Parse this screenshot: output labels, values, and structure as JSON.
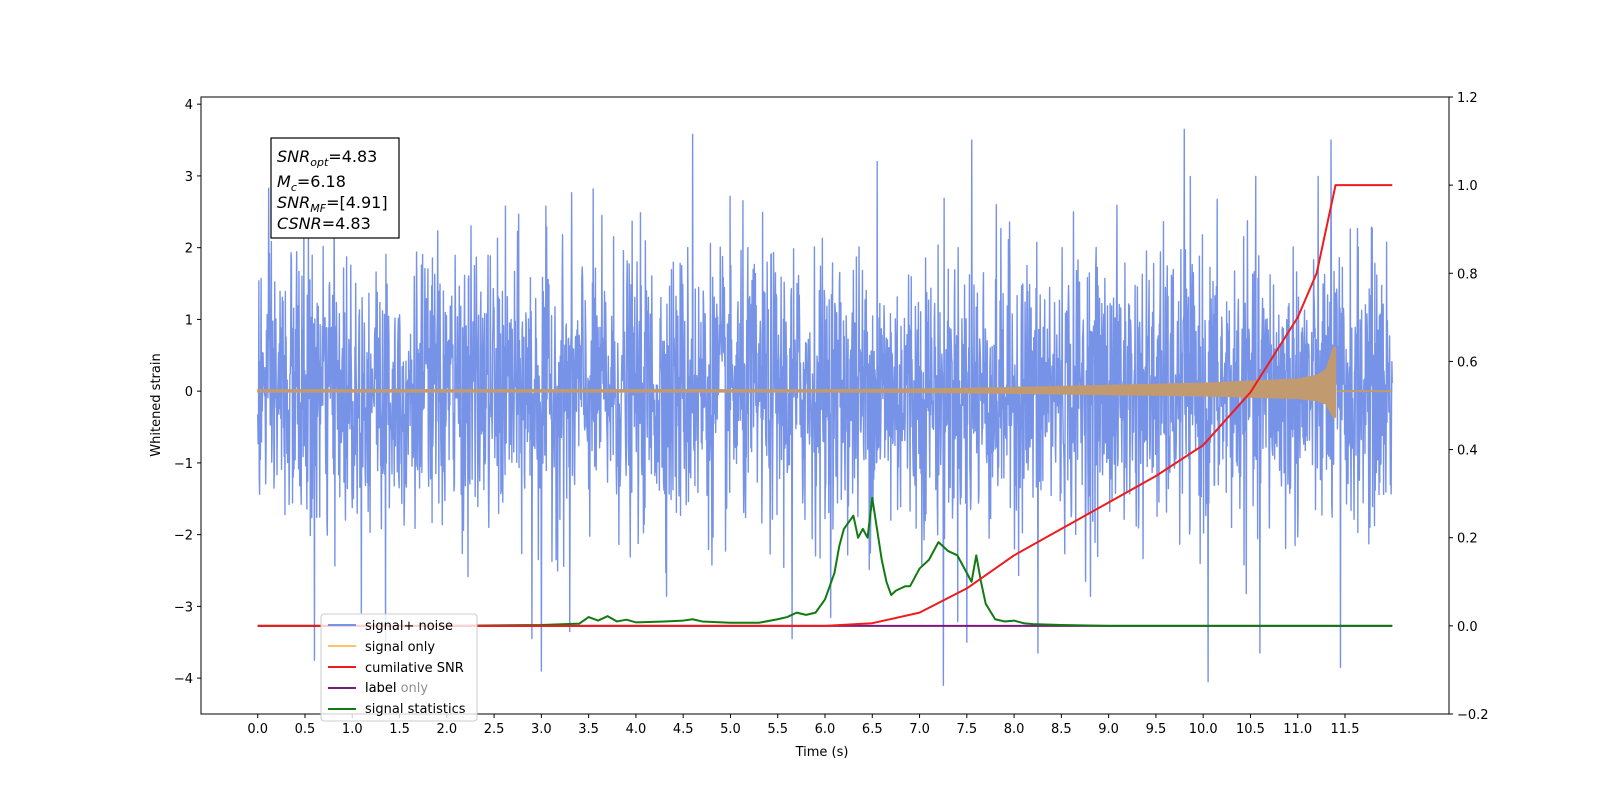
{
  "chart_data": {
    "type": "line",
    "title": "",
    "xlabel": "Time (s)",
    "ylabel": "Whitened strain",
    "x_ticks": [
      0.0,
      0.5,
      1.0,
      1.5,
      2.0,
      2.5,
      3.0,
      3.5,
      4.0,
      4.5,
      5.0,
      5.5,
      6.0,
      6.5,
      7.0,
      7.5,
      8.0,
      8.5,
      9.0,
      9.5,
      10.0,
      10.5,
      11.0,
      11.5
    ],
    "x_tick_labels": [
      "0.0",
      "0.5",
      "1.0",
      "1.5",
      "2.0",
      "2.5",
      "3.0",
      "3.5",
      "4.0",
      "4.5",
      "5.0",
      "5.5",
      "6.0",
      "6.5",
      "7.0",
      "7.5",
      "8.0",
      "8.5",
      "9.0",
      "9.5",
      "10.0",
      "10.5",
      "11.0",
      "11.5"
    ],
    "xlim": [
      -0.6,
      12.6
    ],
    "ylim_left": [
      -4.5,
      4.1
    ],
    "y_left_ticks": [
      -4,
      -3,
      -2,
      -1,
      0,
      1,
      2,
      3,
      4
    ],
    "y_left_tick_labels": [
      "−4",
      "−3",
      "−2",
      "−1",
      "0",
      "1",
      "2",
      "3",
      "4"
    ],
    "ylim_right": [
      -0.2,
      1.2
    ],
    "y_right_ticks": [
      -0.2,
      0.0,
      0.2,
      0.4,
      0.6,
      0.8,
      1.0,
      1.2
    ],
    "y_right_tick_labels": [
      "−0.2",
      "0.0",
      "0.2",
      "0.4",
      "0.6",
      "0.8",
      "1.0",
      "1.2"
    ],
    "legend_placement": "lower-left",
    "colors": {
      "signal_noise": "#7793e8",
      "signal_only": "#c29a6f",
      "signal_only_legend": "#ffc36b",
      "cumulative_snr": "#ee1c1c",
      "label": "#7a1a7a",
      "signal_statistics": "#127a12"
    },
    "series": [
      {
        "name": "signal+ noise",
        "axis": "left",
        "description_stats": {
          "x_start": 0.0,
          "x_end": 12.0,
          "std": 0.95,
          "peak_max": 3.65,
          "peak_min": -4.1
        },
        "notable_peaks": [
          [
            4.6,
            3.58
          ],
          [
            9.8,
            3.65
          ],
          [
            6.55,
            3.2
          ],
          [
            7.55,
            3.5
          ],
          [
            11.35,
            3.5
          ],
          [
            7.25,
            -4.1
          ],
          [
            10.05,
            -4.05
          ],
          [
            3.0,
            -3.9
          ],
          [
            0.6,
            -3.75
          ],
          [
            11.45,
            -3.85
          ],
          [
            10.6,
            -3.65
          ],
          [
            8.25,
            -3.65
          ],
          [
            7.5,
            -3.5
          ],
          [
            5.65,
            -3.45
          ],
          [
            2.9,
            -3.45
          ],
          [
            3.3,
            -3.35
          ],
          [
            1.35,
            -3.5
          ]
        ]
      },
      {
        "name": "signal only",
        "axis": "left",
        "envelope": [
          [
            0.0,
            0.02
          ],
          [
            4.0,
            0.02
          ],
          [
            6.0,
            0.02
          ],
          [
            7.0,
            0.03
          ],
          [
            8.0,
            0.05
          ],
          [
            9.0,
            0.08
          ],
          [
            10.0,
            0.11
          ],
          [
            10.5,
            0.14
          ],
          [
            11.0,
            0.17
          ],
          [
            11.2,
            0.22
          ],
          [
            11.3,
            0.3
          ],
          [
            11.38,
            0.62
          ],
          [
            11.4,
            0.6
          ]
        ],
        "after_merger": [
          [
            11.42,
            0.0
          ],
          [
            12.0,
            0.0
          ]
        ]
      },
      {
        "name": "cumilative SNR",
        "axis": "right",
        "x": [
          0.0,
          6.0,
          6.5,
          7.0,
          7.5,
          8.0,
          8.5,
          9.0,
          9.5,
          10.0,
          10.5,
          11.0,
          11.2,
          11.4,
          11.42,
          12.0
        ],
        "values": [
          0.0,
          0.0,
          0.006,
          0.03,
          0.085,
          0.16,
          0.22,
          0.28,
          0.34,
          0.41,
          0.53,
          0.7,
          0.8,
          1.0,
          1.0,
          1.0
        ]
      },
      {
        "name": "label only",
        "axis": "right",
        "x": [
          0.0,
          12.0
        ],
        "values": [
          0.0,
          0.0
        ]
      },
      {
        "name": "signal statistics",
        "axis": "right",
        "x": [
          0.0,
          2.0,
          3.0,
          3.4,
          3.5,
          3.6,
          3.7,
          3.8,
          3.9,
          4.0,
          4.3,
          4.5,
          4.6,
          4.7,
          5.0,
          5.3,
          5.5,
          5.6,
          5.7,
          5.8,
          5.9,
          6.0,
          6.1,
          6.15,
          6.2,
          6.3,
          6.35,
          6.4,
          6.45,
          6.5,
          6.55,
          6.6,
          6.65,
          6.7,
          6.75,
          6.8,
          6.85,
          6.9,
          7.0,
          7.1,
          7.2,
          7.25,
          7.3,
          7.4,
          7.5,
          7.55,
          7.6,
          7.65,
          7.7,
          7.8,
          7.9,
          8.0,
          8.1,
          8.2,
          8.5,
          9.0,
          12.0
        ],
        "values": [
          0.0,
          0.0,
          0.002,
          0.005,
          0.02,
          0.012,
          0.022,
          0.01,
          0.014,
          0.008,
          0.01,
          0.012,
          0.015,
          0.01,
          0.007,
          0.007,
          0.015,
          0.02,
          0.03,
          0.025,
          0.03,
          0.06,
          0.12,
          0.18,
          0.22,
          0.25,
          0.2,
          0.22,
          0.2,
          0.29,
          0.22,
          0.15,
          0.1,
          0.07,
          0.08,
          0.085,
          0.09,
          0.09,
          0.13,
          0.15,
          0.19,
          0.18,
          0.17,
          0.16,
          0.12,
          0.1,
          0.16,
          0.1,
          0.05,
          0.015,
          0.01,
          0.012,
          0.006,
          0.004,
          0.002,
          0.0,
          0.0
        ]
      }
    ],
    "legend": [
      "signal+ noise",
      "signal only",
      "cumilative SNR",
      "label",
      "signal statistics"
    ],
    "legend_overlap_text": "label only",
    "annotations": [
      {
        "base": "SNR",
        "sub": "opt",
        "value": "=4.83"
      },
      {
        "base": "M",
        "sub": "c",
        "value": "=6.18"
      },
      {
        "base": "SNR",
        "sub": "MF",
        "value": "=[4.91]"
      },
      {
        "base": "CSNR",
        "sub": "",
        "value": "=4.83"
      }
    ]
  }
}
